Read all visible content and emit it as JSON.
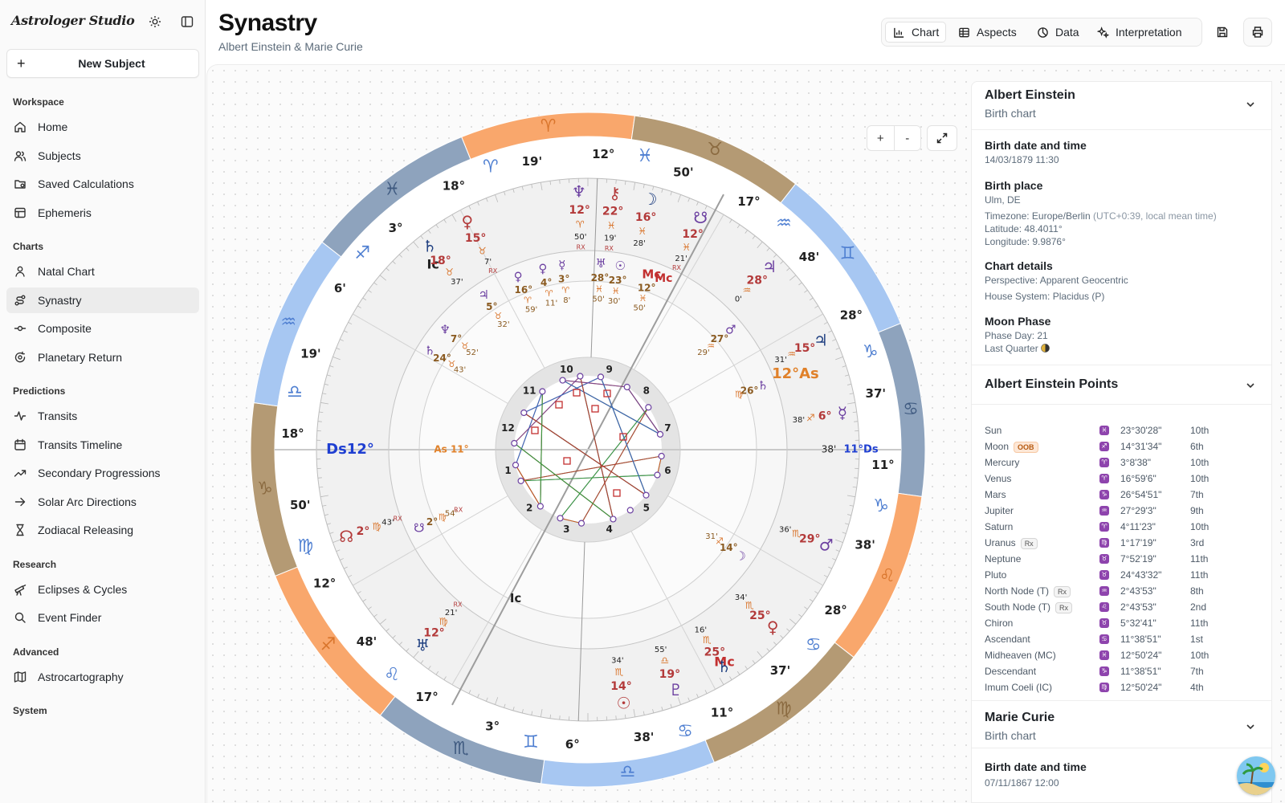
{
  "app": {
    "brand": "Astrologer Studio",
    "title": "Synastry",
    "subtitle": "Albert Einstein & Marie Curie"
  },
  "sidebar": {
    "new_subject": "New Subject",
    "groups": [
      {
        "title": "Workspace",
        "items": [
          {
            "label": "Home",
            "icon": "home-icon"
          },
          {
            "label": "Subjects",
            "icon": "users-icon"
          },
          {
            "label": "Saved Calculations",
            "icon": "folder-icon"
          },
          {
            "label": "Ephemeris",
            "icon": "table-icon"
          }
        ]
      },
      {
        "title": "Charts",
        "items": [
          {
            "label": "Natal Chart",
            "icon": "user-icon"
          },
          {
            "label": "Synastry",
            "icon": "route-icon",
            "active": true
          },
          {
            "label": "Composite",
            "icon": "commit-icon"
          },
          {
            "label": "Planetary Return",
            "icon": "refresh-icon"
          }
        ]
      },
      {
        "title": "Predictions",
        "items": [
          {
            "label": "Transits",
            "icon": "activity-icon"
          },
          {
            "label": "Transits Timeline",
            "icon": "calendar-icon"
          },
          {
            "label": "Secondary Progressions",
            "icon": "trend-icon"
          },
          {
            "label": "Solar Arc Directions",
            "icon": "arrow-right-icon"
          },
          {
            "label": "Zodiacal Releasing",
            "icon": "hourglass-icon"
          }
        ]
      },
      {
        "title": "Research",
        "items": [
          {
            "label": "Eclipses & Cycles",
            "icon": "telescope-icon"
          },
          {
            "label": "Event Finder",
            "icon": "search-icon"
          }
        ]
      },
      {
        "title": "Advanced",
        "items": [
          {
            "label": "Astrocartography",
            "icon": "map-icon"
          }
        ]
      },
      {
        "title": "System",
        "items": []
      }
    ]
  },
  "tabs": [
    {
      "label": "Chart",
      "icon": "bar-chart-icon",
      "active": true
    },
    {
      "label": "Aspects",
      "icon": "grid-icon"
    },
    {
      "label": "Data",
      "icon": "pie-icon"
    },
    {
      "label": "Interpretation",
      "icon": "sparkles-icon"
    }
  ],
  "zoom": {
    "in": "+",
    "out": "-"
  },
  "chart_colors": {
    "fire": "#f9a76c",
    "earth": "#b49a74",
    "air": "#a7c7f2",
    "water": "#8ea3bd",
    "inner_planets": "#b33a3a",
    "outer_planets": "#6b3fa0"
  },
  "wheel": {
    "outer_signs": [
      "♈",
      "♉",
      "♊",
      "♋",
      "♌",
      "♍",
      "♎",
      "♏",
      "♐",
      "♑",
      "♒",
      "♓"
    ],
    "degree_labels": [
      {
        "d": "18°",
        "m": "19'",
        "sign": "♈"
      },
      {
        "d": "12°",
        "m": "50'",
        "sign": "♓"
      },
      {
        "d": "17°",
        "m": "48'",
        "sign": "♒"
      },
      {
        "d": "28°",
        "m": "37'",
        "sign": "♑"
      },
      {
        "d": "11°",
        "m": "38'",
        "sign": "♑"
      },
      {
        "d": "28°",
        "m": "37'",
        "sign": "♋"
      },
      {
        "d": "11°",
        "m": "38'",
        "sign": "♋"
      },
      {
        "d": "6°",
        "m": "3°",
        "sign": "♊"
      },
      {
        "d": "17°",
        "m": "48'",
        "sign": "♌"
      },
      {
        "d": "12°",
        "m": "50'",
        "sign": "♍"
      },
      {
        "d": "18°",
        "m": "19'",
        "sign": "♎"
      },
      {
        "d": "6'",
        "m": "3°",
        "sign": "♐"
      }
    ],
    "angles": {
      "asc": "As",
      "desc": "Ds",
      "mc": "Mc",
      "ic": "Ic"
    },
    "angle_labels": {
      "asc_deg": "12°",
      "desc_deg": "12°",
      "inner_desc": "11°Ds",
      "inner_asc": "As 11°",
      "asc_min": "38'",
      "desc_min": "3'"
    },
    "houses": [
      "10",
      "9",
      "8",
      "7",
      "6",
      "5",
      "4",
      "3",
      "2",
      "1",
      "12",
      "11"
    ],
    "planets_a": [
      {
        "glyph": "♆",
        "deg": "12°",
        "sign": "♈",
        "min": "50'",
        "rx": "RX"
      },
      {
        "glyph": "⚷",
        "deg": "22°",
        "sign": "♓",
        "min": "19'",
        "rx": "RX"
      },
      {
        "glyph": "☽",
        "deg": "16°",
        "sign": "♓",
        "min": "28'"
      },
      {
        "glyph": "☋",
        "deg": "12°",
        "sign": "♓",
        "min": "21'",
        "rx": "RX"
      },
      {
        "glyph": "♀",
        "deg": "15°",
        "sign": "♉",
        "min": "7'",
        "rx": "RX"
      },
      {
        "glyph": "♄",
        "deg": "18°",
        "sign": "♉",
        "min": "37'"
      },
      {
        "glyph": "♃",
        "deg": "28°",
        "sign": "♒",
        "min": "0'"
      },
      {
        "glyph": "☊",
        "deg": "2°",
        "sign": "♍",
        "min": "43'",
        "rx": "RX"
      },
      {
        "glyph": "♅",
        "deg": "12°",
        "sign": "♍",
        "min": "21'",
        "rx": "RX"
      },
      {
        "glyph": "♂",
        "deg": "29°",
        "sign": "♏",
        "min": "36'"
      },
      {
        "glyph": "♀",
        "deg": "25°",
        "sign": "♏",
        "min": "34'"
      },
      {
        "glyph": "♄",
        "deg": "25°",
        "sign": "♏",
        "min": "16'"
      },
      {
        "glyph": "♇",
        "deg": "19°",
        "sign": "♎",
        "min": "55'"
      },
      {
        "glyph": "☉",
        "deg": "14°",
        "sign": "♏",
        "min": "34'"
      },
      {
        "glyph": "♃",
        "deg": "15°",
        "sign": "♒",
        "min": "31'"
      },
      {
        "glyph": "☿",
        "deg": "6°",
        "sign": "♐",
        "min": "38'"
      }
    ],
    "planets_b": [
      {
        "glyph": "♀",
        "deg": "4°",
        "sign": "♈",
        "min": "11'"
      },
      {
        "glyph": "☿",
        "deg": "3°",
        "sign": "♈",
        "min": "8'"
      },
      {
        "glyph": "♅",
        "deg": "28°",
        "sign": "♓",
        "min": "50'"
      },
      {
        "glyph": "☉",
        "deg": "23°",
        "sign": "♓",
        "min": "30'"
      },
      {
        "glyph": "Mc",
        "deg": "12°",
        "sign": "♓",
        "min": "50'"
      },
      {
        "glyph": "♂",
        "deg": "27°",
        "sign": "♒",
        "min": "29'"
      },
      {
        "glyph": "♀",
        "deg": "16°",
        "sign": "♈",
        "min": "59'"
      },
      {
        "glyph": "♆",
        "deg": "7°",
        "sign": "♉",
        "min": "52'"
      },
      {
        "glyph": "♄",
        "deg": "24°",
        "sign": "♉",
        "min": "43'"
      },
      {
        "glyph": "♃",
        "deg": "5°",
        "sign": "♉",
        "min": "32'"
      },
      {
        "glyph": "☋",
        "deg": "2°",
        "sign": "♍",
        "min": "54'",
        "rx": "RX"
      },
      {
        "glyph": "♄",
        "deg": "26°",
        "sign": "♍"
      },
      {
        "glyph": "☽",
        "deg": "14°",
        "sign": "♐",
        "min": "31'"
      }
    ]
  },
  "panel": {
    "person_a": {
      "name": "Albert Einstein",
      "subtitle": "Birth chart",
      "birth_title": "Birth date and time",
      "birth_value": "14/03/1879 11:30",
      "place_title": "Birth place",
      "place_value": "Ulm, DE",
      "timezone": "Timezone: Europe/Berlin",
      "timezone_note": "(UTC+0:39, local mean time)",
      "latitude": "Latitude: 48.4011°",
      "longitude": "Longitude: 9.9876°",
      "details_title": "Chart details",
      "perspective": "Perspective: Apparent Geocentric",
      "house_system": "House System: Placidus (P)",
      "moon_title": "Moon Phase",
      "phase_day": "Phase Day: 21",
      "last_quarter": "Last Quarter"
    },
    "points_title": "Albert Einstein Points",
    "points": [
      {
        "name": "Sun",
        "sign": "♓",
        "deg": "23°30'28\"",
        "house": "10th"
      },
      {
        "name": "Moon",
        "badge": "OOB",
        "sign": "♐",
        "deg": "14°31'34\"",
        "house": "6th"
      },
      {
        "name": "Mercury",
        "sign": "♈",
        "deg": "3°8'38\"",
        "house": "10th"
      },
      {
        "name": "Venus",
        "sign": "♈",
        "deg": "16°59'6\"",
        "house": "10th"
      },
      {
        "name": "Mars",
        "sign": "♑",
        "deg": "26°54'51\"",
        "house": "7th"
      },
      {
        "name": "Jupiter",
        "sign": "♒",
        "deg": "27°29'3\"",
        "house": "9th"
      },
      {
        "name": "Saturn",
        "sign": "♈",
        "deg": "4°11'23\"",
        "house": "10th"
      },
      {
        "name": "Uranus",
        "badge": "Rx",
        "sign": "♍",
        "deg": "1°17'19\"",
        "house": "3rd"
      },
      {
        "name": "Neptune",
        "sign": "♉",
        "deg": "7°52'19\"",
        "house": "11th"
      },
      {
        "name": "Pluto",
        "sign": "♉",
        "deg": "24°43'32\"",
        "house": "11th"
      },
      {
        "name": "North Node (T)",
        "badge": "Rx",
        "sign": "♒",
        "deg": "2°43'53\"",
        "house": "8th"
      },
      {
        "name": "South Node (T)",
        "badge": "Rx",
        "sign": "♌",
        "deg": "2°43'53\"",
        "house": "2nd"
      },
      {
        "name": "Chiron",
        "sign": "♉",
        "deg": "5°32'41\"",
        "house": "11th"
      },
      {
        "name": "Ascendant",
        "sign": "♋",
        "deg": "11°38'51\"",
        "house": "1st"
      },
      {
        "name": "Midheaven (MC)",
        "sign": "♓",
        "deg": "12°50'24\"",
        "house": "10th"
      },
      {
        "name": "Descendant",
        "sign": "♑",
        "deg": "11°38'51\"",
        "house": "7th"
      },
      {
        "name": "Imum Coeli (IC)",
        "sign": "♍",
        "deg": "12°50'24\"",
        "house": "4th"
      }
    ],
    "person_b": {
      "name": "Marie Curie",
      "subtitle": "Birth chart",
      "birth_title": "Birth date and time",
      "birth_value": "07/11/1867 12:00"
    }
  }
}
